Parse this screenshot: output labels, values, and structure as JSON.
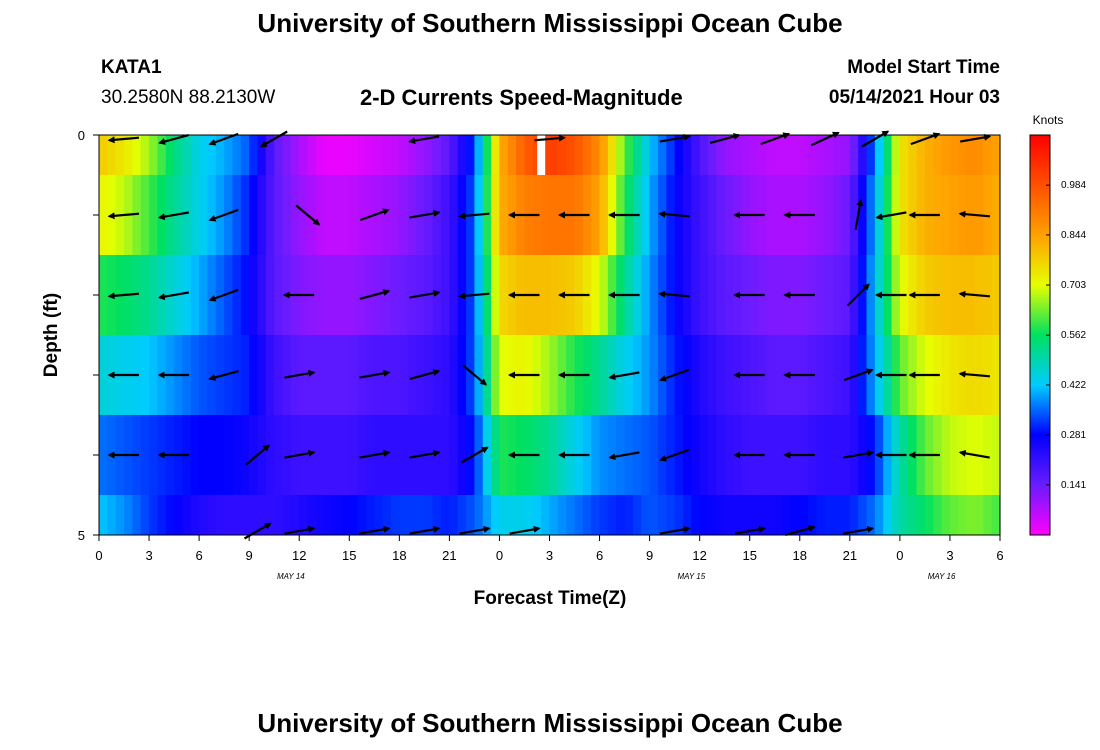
{
  "header": {
    "title_top": "University of Southern Mississippi Ocean Cube",
    "title_bottom": "University of Southern Mississippi Ocean Cube",
    "station_id": "KATA1",
    "station_coords": "30.2580N  88.2130W",
    "chart_title": "2-D Currents Speed-Magnitude",
    "model_start_label": "Model Start Time",
    "model_start_value": "05/14/2021 Hour 03"
  },
  "chart_data": {
    "type": "heatmap",
    "title": "2-D Currents Speed-Magnitude",
    "xlabel": "Forecast Time(Z)",
    "ylabel": "Depth (ft)",
    "x_tick_labels": [
      "0",
      "3",
      "6",
      "9",
      "12",
      "15",
      "18",
      "21",
      "0",
      "3",
      "6",
      "9",
      "12",
      "15",
      "18",
      "21",
      "0",
      "3",
      "6"
    ],
    "x_tick_hours": [
      0,
      3,
      6,
      9,
      12,
      15,
      18,
      21,
      24,
      27,
      30,
      33,
      36,
      39,
      42,
      45,
      48,
      51,
      54
    ],
    "xlim": [
      0,
      54
    ],
    "y_tick_labels": [
      "0",
      "5"
    ],
    "ylim": [
      0,
      5
    ],
    "date_labels": [
      {
        "text": "MAY 14",
        "hour": 11.5
      },
      {
        "text": "MAY 15",
        "hour": 35.5
      },
      {
        "text": "MAY 16",
        "hour": 50.5
      }
    ],
    "colorbar": {
      "label": "Knots",
      "tick_labels": [
        "0.984",
        "0.844",
        "0.703",
        "0.562",
        "0.422",
        "0.281",
        "0.141"
      ],
      "tick_values": [
        0.984,
        0.844,
        0.703,
        0.562,
        0.422,
        0.281,
        0.141
      ],
      "range": [
        0.0,
        1.125
      ]
    },
    "speed_profile_hours": [
      0,
      1.5,
      3,
      4.5,
      6,
      7.5,
      9,
      10.5,
      12,
      13.5,
      15,
      16.5,
      18,
      19.5,
      21,
      22.5,
      24,
      25.5,
      27,
      28.5,
      30,
      31.5,
      33,
      34.5,
      36,
      37.5,
      39,
      40.5,
      42,
      43.5,
      45,
      46.5,
      48,
      49.5,
      51,
      52.5,
      54
    ],
    "speed_rows": [
      {
        "depth_top": 0.0,
        "depth_bottom": 0.5,
        "speed": [
          0.78,
          0.74,
          0.66,
          0.54,
          0.44,
          0.4,
          0.34,
          0.16,
          0.08,
          0.02,
          0.02,
          0.04,
          0.06,
          0.1,
          0.16,
          0.32,
          0.82,
          0.96,
          1.02,
          0.98,
          0.88,
          0.62,
          0.42,
          0.3,
          0.18,
          0.1,
          0.08,
          0.06,
          0.06,
          0.08,
          0.1,
          0.36,
          0.74,
          0.82,
          0.86,
          0.88,
          0.84
        ]
      },
      {
        "depth_top": 0.5,
        "depth_bottom": 1.5,
        "speed": [
          0.72,
          0.68,
          0.6,
          0.52,
          0.44,
          0.38,
          0.3,
          0.16,
          0.1,
          0.06,
          0.06,
          0.08,
          0.1,
          0.14,
          0.2,
          0.34,
          0.82,
          0.9,
          0.92,
          0.92,
          0.84,
          0.58,
          0.4,
          0.28,
          0.2,
          0.14,
          0.1,
          0.08,
          0.08,
          0.1,
          0.14,
          0.4,
          0.74,
          0.82,
          0.84,
          0.86,
          0.82
        ]
      },
      {
        "depth_top": 1.5,
        "depth_bottom": 2.5,
        "speed": [
          0.58,
          0.56,
          0.52,
          0.46,
          0.4,
          0.34,
          0.28,
          0.16,
          0.12,
          0.1,
          0.1,
          0.12,
          0.14,
          0.16,
          0.2,
          0.34,
          0.76,
          0.8,
          0.8,
          0.78,
          0.7,
          0.52,
          0.38,
          0.28,
          0.2,
          0.16,
          0.14,
          0.12,
          0.12,
          0.14,
          0.16,
          0.42,
          0.7,
          0.78,
          0.8,
          0.8,
          0.78
        ]
      },
      {
        "depth_top": 2.5,
        "depth_bottom": 3.5,
        "speed": [
          0.46,
          0.44,
          0.42,
          0.38,
          0.34,
          0.32,
          0.3,
          0.2,
          0.16,
          0.16,
          0.16,
          0.18,
          0.18,
          0.2,
          0.22,
          0.34,
          0.7,
          0.72,
          0.66,
          0.58,
          0.52,
          0.44,
          0.38,
          0.3,
          0.24,
          0.2,
          0.18,
          0.16,
          0.16,
          0.18,
          0.2,
          0.4,
          0.62,
          0.7,
          0.74,
          0.76,
          0.74
        ]
      },
      {
        "depth_top": 3.5,
        "depth_bottom": 4.5,
        "speed": [
          0.36,
          0.34,
          0.32,
          0.3,
          0.28,
          0.28,
          0.26,
          0.22,
          0.2,
          0.2,
          0.2,
          0.22,
          0.22,
          0.22,
          0.22,
          0.3,
          0.58,
          0.56,
          0.52,
          0.44,
          0.38,
          0.36,
          0.34,
          0.3,
          0.26,
          0.22,
          0.2,
          0.2,
          0.2,
          0.22,
          0.22,
          0.3,
          0.5,
          0.62,
          0.68,
          0.7,
          0.68
        ]
      },
      {
        "depth_top": 4.5,
        "depth_bottom": 5.0,
        "speed": [
          0.42,
          0.38,
          0.32,
          0.28,
          0.24,
          0.22,
          0.22,
          0.22,
          0.24,
          0.26,
          0.28,
          0.3,
          0.32,
          0.32,
          0.3,
          0.34,
          0.44,
          0.44,
          0.4,
          0.36,
          0.32,
          0.3,
          0.34,
          0.32,
          0.28,
          0.26,
          0.26,
          0.26,
          0.28,
          0.3,
          0.3,
          0.36,
          0.5,
          0.56,
          0.62,
          0.64,
          0.6
        ]
      }
    ],
    "vector_depths": [
      0.05,
      1.0,
      2.0,
      3.0,
      4.0,
      4.95
    ],
    "vector_rows": [
      {
        "hours": [
          1.5,
          4.5,
          7.5,
          10.5,
          19.5,
          27,
          34.5,
          37.5,
          40.5,
          43.5,
          46.5,
          49.5,
          52.5
        ],
        "dirs": [
          185,
          195,
          200,
          210,
          190,
          5,
          10,
          15,
          20,
          25,
          30,
          20,
          10
        ]
      },
      {
        "hours": [
          1.5,
          4.5,
          7.5,
          12.5,
          16.5,
          19.5,
          22.5,
          25.5,
          28.5,
          31.5,
          34.5,
          39,
          42,
          45.5,
          47.5,
          49.5,
          52.5
        ],
        "dirs": [
          185,
          190,
          200,
          320,
          20,
          10,
          185,
          180,
          180,
          180,
          175,
          180,
          180,
          80,
          190,
          180,
          175
        ]
      },
      {
        "hours": [
          1.5,
          4.5,
          7.5,
          12,
          16.5,
          19.5,
          22.5,
          25.5,
          28.5,
          31.5,
          34.5,
          39,
          42,
          45.5,
          47.5,
          49.5,
          52.5
        ],
        "dirs": [
          185,
          190,
          200,
          180,
          15,
          10,
          185,
          180,
          180,
          180,
          175,
          180,
          180,
          45,
          180,
          180,
          175
        ]
      },
      {
        "hours": [
          1.5,
          4.5,
          7.5,
          12,
          16.5,
          19.5,
          22.5,
          25.5,
          28.5,
          31.5,
          34.5,
          39,
          42,
          45.5,
          47.5,
          49.5,
          52.5
        ],
        "dirs": [
          180,
          180,
          195,
          10,
          10,
          15,
          320,
          180,
          180,
          190,
          200,
          180,
          180,
          20,
          180,
          180,
          175
        ]
      },
      {
        "hours": [
          1.5,
          4.5,
          9.5,
          12,
          16.5,
          19.5,
          22.5,
          25.5,
          28.5,
          31.5,
          34.5,
          39,
          42,
          45.5,
          47.5,
          49.5,
          52.5
        ],
        "dirs": [
          180,
          180,
          40,
          10,
          10,
          10,
          30,
          180,
          180,
          190,
          200,
          180,
          180,
          10,
          180,
          180,
          170
        ]
      },
      {
        "hours": [
          9.5,
          12,
          16.5,
          19.5,
          22.5,
          25.5,
          34.5,
          39,
          42,
          45.5
        ],
        "dirs": [
          30,
          10,
          10,
          10,
          10,
          10,
          10,
          10,
          15,
          10
        ]
      }
    ],
    "notes": [
      {
        "text": "I",
        "hour": 26.5,
        "depth_top": 0.0,
        "depth_bottom": 0.5
      }
    ]
  }
}
